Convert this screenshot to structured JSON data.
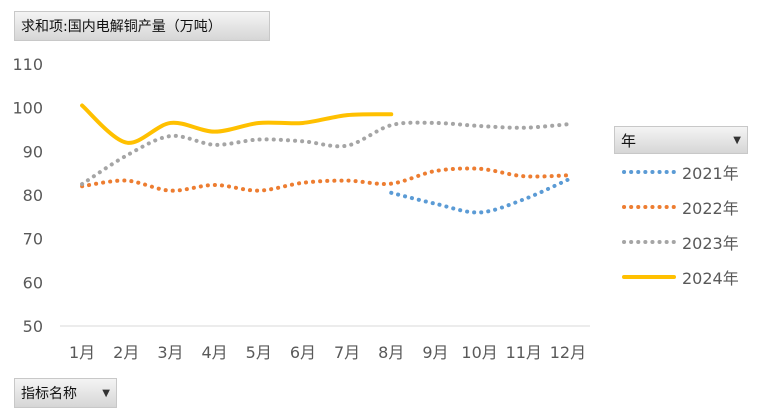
{
  "field_buttons": {
    "values_field": "求和项:国内电解铜产量（万吨）",
    "category_field": "指标名称",
    "legend_field": "年"
  },
  "icons": {
    "dropdown": "dropdown-arrow-icon"
  },
  "chart_data": {
    "type": "line",
    "title": "",
    "xlabel": "",
    "ylabel": "",
    "categories": [
      "1月",
      "2月",
      "3月",
      "4月",
      "5月",
      "6月",
      "7月",
      "8月",
      "9月",
      "10月",
      "11月",
      "12月"
    ],
    "ylim": [
      50,
      110
    ],
    "yticks": [
      50,
      60,
      70,
      80,
      90,
      100,
      110
    ],
    "grid": false,
    "legend_position": "right",
    "series": [
      {
        "name": "2021年",
        "color": "#5b9bd5",
        "style": "dotted",
        "values": [
          null,
          null,
          null,
          null,
          null,
          null,
          null,
          80.5,
          78,
          76,
          79,
          83.5
        ]
      },
      {
        "name": "2022年",
        "color": "#ed7d31",
        "style": "dotted",
        "values": [
          82,
          83.3,
          81,
          82.3,
          81,
          82.8,
          83.3,
          82.6,
          85.5,
          86,
          84.3,
          84.5
        ]
      },
      {
        "name": "2023年",
        "color": "#a5a5a5",
        "style": "dotted",
        "values": [
          82.5,
          89,
          93.5,
          91.5,
          92.7,
          92.3,
          91.3,
          96,
          96.5,
          95.8,
          95.4,
          96.2
        ]
      },
      {
        "name": "2024年",
        "color": "#ffc000",
        "style": "solid",
        "values": [
          100.5,
          92,
          96.5,
          94.5,
          96.5,
          96.5,
          98.3,
          98.5,
          null,
          null,
          null,
          null
        ]
      }
    ]
  }
}
